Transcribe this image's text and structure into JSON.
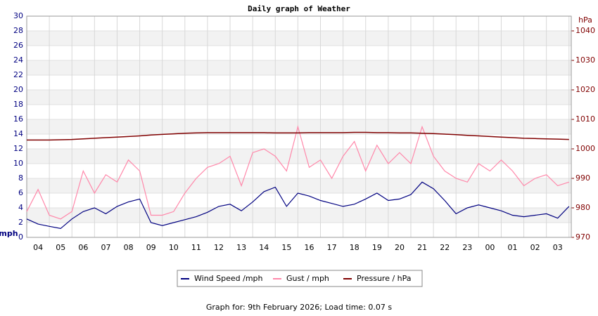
{
  "chart_data": {
    "type": "line",
    "title": "Daily graph of Weather",
    "caption": "Graph for: 9th February 2026; Load time: 0.07 s",
    "ylabel": "mph",
    "y2label": "hPa",
    "x": [
      0,
      0.5,
      1,
      1.5,
      2,
      2.5,
      3,
      3.5,
      4,
      4.5,
      5,
      5.5,
      6,
      6.5,
      7,
      7.5,
      8,
      8.5,
      9,
      9.5,
      10,
      10.5,
      11,
      11.5,
      12,
      12.5,
      13,
      13.5,
      14,
      14.5,
      15,
      15.5,
      16,
      16.5,
      17,
      17.5,
      18,
      18.5,
      19,
      19.5,
      20,
      20.5,
      21,
      21.5,
      22,
      22.5,
      23,
      23.5,
      24
    ],
    "xlim": [
      0,
      24.1
    ],
    "xticks": [
      {
        "value": 1,
        "label": "04"
      },
      {
        "value": 2,
        "label": "05"
      },
      {
        "value": 3,
        "label": "06"
      },
      {
        "value": 4,
        "label": "07"
      },
      {
        "value": 5,
        "label": "08"
      },
      {
        "value": 6,
        "label": "09"
      },
      {
        "value": 7,
        "label": "10"
      },
      {
        "value": 8,
        "label": "11"
      },
      {
        "value": 9,
        "label": "12"
      },
      {
        "value": 10,
        "label": "13"
      },
      {
        "value": 11,
        "label": "14"
      },
      {
        "value": 12,
        "label": "15"
      },
      {
        "value": 13,
        "label": "16"
      },
      {
        "value": 14,
        "label": "17"
      },
      {
        "value": 15,
        "label": "18"
      },
      {
        "value": 16,
        "label": "19"
      },
      {
        "value": 17,
        "label": "20"
      },
      {
        "value": 18,
        "label": "21"
      },
      {
        "value": 19,
        "label": "22"
      },
      {
        "value": 20,
        "label": "23"
      },
      {
        "value": 21,
        "label": "00"
      },
      {
        "value": 22,
        "label": "01"
      },
      {
        "value": 23,
        "label": "02"
      },
      {
        "value": 24,
        "label": "03"
      }
    ],
    "ylim": [
      0,
      30
    ],
    "yticks": [
      0,
      2,
      4,
      6,
      8,
      10,
      12,
      14,
      16,
      18,
      20,
      22,
      24,
      26,
      28,
      30
    ],
    "y2lim": [
      970,
      1045
    ],
    "y2ticks": [
      970,
      980,
      990,
      1000,
      1010,
      1020,
      1030,
      1040
    ],
    "grid": true,
    "series": [
      {
        "name": "Wind Speed /mph",
        "color": "#000080",
        "axis": "y",
        "values": [
          2.5,
          1.8,
          1.5,
          1.2,
          2.5,
          3.5,
          4.0,
          3.2,
          4.2,
          4.8,
          5.2,
          2.0,
          1.6,
          2.0,
          2.4,
          2.8,
          3.4,
          4.2,
          4.5,
          3.6,
          4.8,
          6.2,
          6.8,
          4.2,
          6.0,
          5.6,
          5.0,
          4.6,
          4.2,
          4.5,
          5.2,
          6.0,
          5.0,
          5.2,
          5.8,
          7.5,
          6.6,
          5.0,
          3.2,
          4.0,
          4.4,
          4.0,
          3.6,
          3.0,
          2.8,
          3.0,
          3.2,
          2.6,
          4.2
        ]
      },
      {
        "name": "Gust / mph",
        "color": "#ff88aa",
        "axis": "y",
        "values": [
          3.5,
          6.5,
          3,
          2.5,
          3.5,
          9,
          6,
          8.5,
          7.5,
          10.5,
          9,
          3,
          3,
          3.5,
          6,
          8,
          9.5,
          10,
          11,
          7,
          11.5,
          12,
          11,
          9,
          15,
          9.5,
          10.5,
          8,
          11,
          13,
          9,
          12.5,
          10,
          11.5,
          10,
          15,
          11,
          9,
          8,
          7.5,
          10,
          9,
          10.5,
          9,
          7,
          8,
          8.5,
          7,
          7.5
        ]
      },
      {
        "name": "Pressure / hPa",
        "color": "#800000",
        "axis": "y2",
        "values": [
          1003,
          1003,
          1003,
          1003.1,
          1003.2,
          1003.4,
          1003.6,
          1003.8,
          1004,
          1004.2,
          1004.4,
          1004.7,
          1004.9,
          1005.1,
          1005.3,
          1005.4,
          1005.5,
          1005.5,
          1005.5,
          1005.5,
          1005.5,
          1005.5,
          1005.4,
          1005.4,
          1005.4,
          1005.5,
          1005.5,
          1005.5,
          1005.5,
          1005.6,
          1005.6,
          1005.5,
          1005.5,
          1005.4,
          1005.4,
          1005.3,
          1005.2,
          1005,
          1004.8,
          1004.6,
          1004.4,
          1004.2,
          1004,
          1003.8,
          1003.6,
          1003.5,
          1003.4,
          1003.3,
          1003.2
        ]
      }
    ]
  }
}
